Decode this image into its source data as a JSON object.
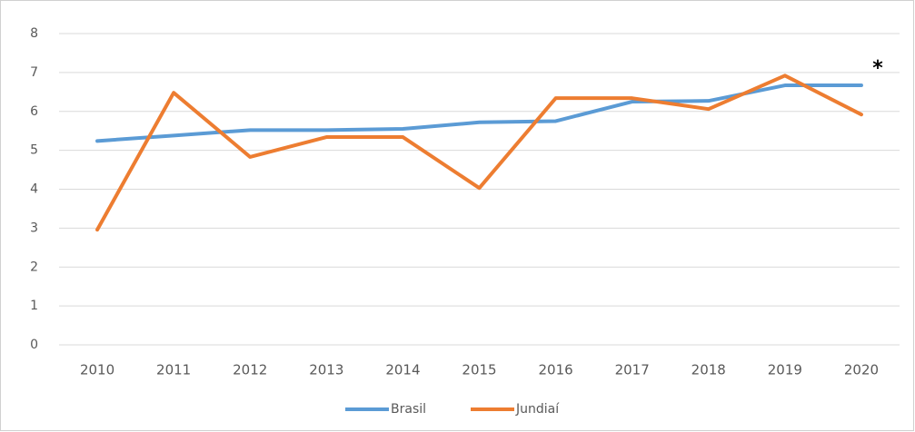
{
  "chart_data": {
    "type": "line",
    "categories": [
      "2010",
      "2011",
      "2012",
      "2013",
      "2014",
      "2015",
      "2016",
      "2017",
      "2018",
      "2019",
      "2020"
    ],
    "series": [
      {
        "name": "Brasil",
        "color": "#5b9bd5",
        "values": [
          5.24,
          5.38,
          5.52,
          5.52,
          5.55,
          5.72,
          5.75,
          6.25,
          6.27,
          6.67,
          6.67
        ]
      },
      {
        "name": "Jundiaí",
        "color": "#ed7d31",
        "values": [
          2.96,
          6.48,
          4.83,
          5.34,
          5.34,
          4.03,
          6.34,
          6.34,
          6.06,
          6.92,
          5.92
        ]
      }
    ],
    "ylim": [
      0,
      8
    ],
    "yticks": [
      0,
      1,
      2,
      3,
      4,
      5,
      6,
      7,
      8
    ],
    "grid": true,
    "annotation": "*",
    "legend": "bottom"
  }
}
